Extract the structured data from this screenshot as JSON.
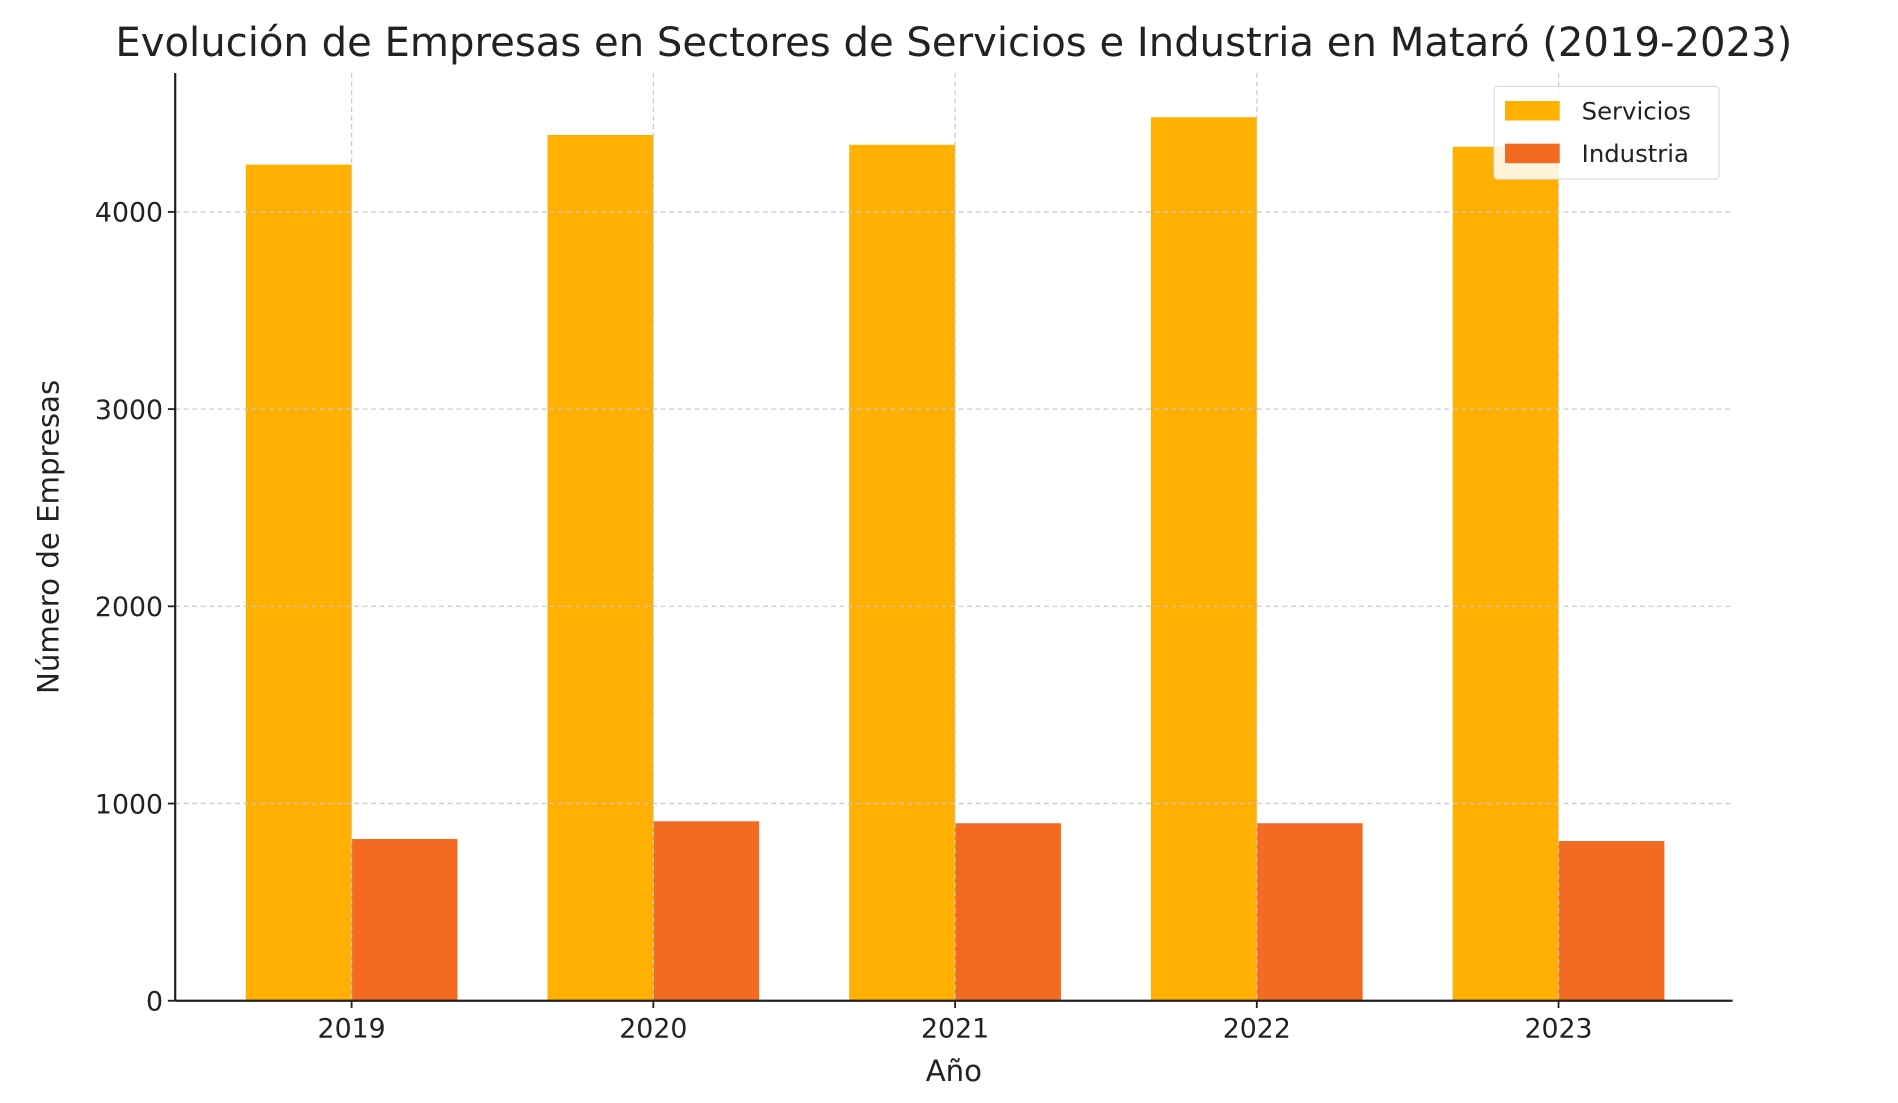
{
  "chart_data": {
    "type": "bar",
    "title": "Evolución de Empresas en Sectores de Servicios e Industria en Mataró (2019-2023)",
    "xlabel": "Año",
    "ylabel": "Número de Empresas",
    "categories": [
      "2019",
      "2020",
      "2021",
      "2022",
      "2023"
    ],
    "series": [
      {
        "name": "Servicios",
        "color": "#FFB000",
        "values": [
          4240,
          4390,
          4340,
          4480,
          4330
        ]
      },
      {
        "name": "Industria",
        "color": "#F26B21",
        "values": [
          820,
          910,
          900,
          900,
          810
        ]
      }
    ],
    "ylim": [
      0,
      4704
    ],
    "yticks": [
      0,
      1000,
      2000,
      3000,
      4000
    ],
    "grid": true,
    "legend_position": "top-right"
  }
}
